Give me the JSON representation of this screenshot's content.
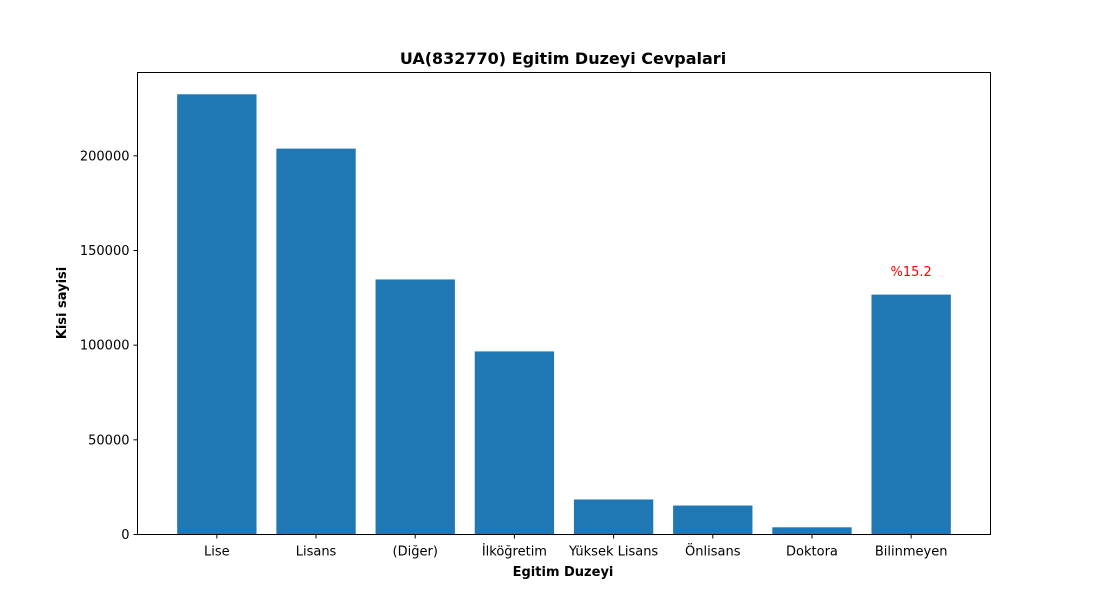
{
  "chart_data": {
    "type": "bar",
    "title": "UA(832770) Egitim Duzeyi Cevpalari",
    "xlabel": "Egitim Duzeyi",
    "ylabel": "Kisi sayisi",
    "categories": [
      "Lise",
      "Lisans",
      "(Diğer)",
      "İlköğretim",
      "Yüksek Lisans",
      "Önlisans",
      "Doktora",
      "Bilinmeyen"
    ],
    "values": [
      232500,
      203800,
      134700,
      96700,
      18500,
      15300,
      3800,
      126700
    ],
    "ylim": [
      0,
      244000
    ],
    "yticks": [
      0,
      50000,
      100000,
      150000,
      200000
    ],
    "grid": false,
    "bar_color": "#1f77b4",
    "annotations": [
      {
        "category": "Bilinmeyen",
        "text": "%15.2",
        "y": 139000,
        "color": "#ff0000"
      }
    ]
  }
}
